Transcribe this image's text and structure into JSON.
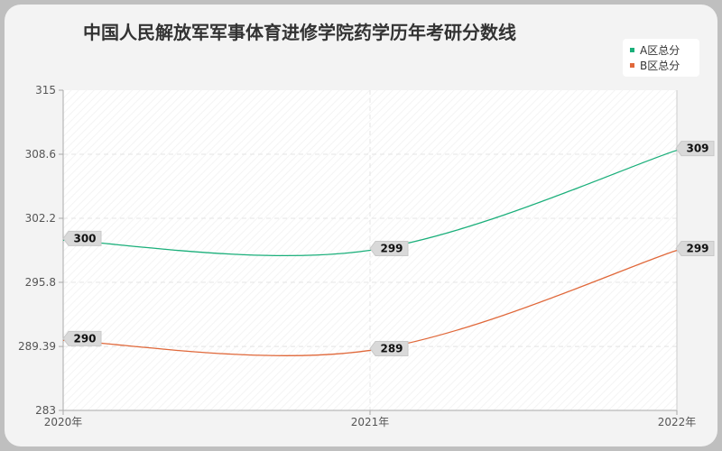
{
  "chart_data": {
    "type": "line",
    "title": "中国人民解放军军事体育进修学院药学历年考研分数线",
    "categories": [
      "2020年",
      "2021年",
      "2022年"
    ],
    "series": [
      {
        "name": "A区总分",
        "values": [
          300,
          299,
          309
        ],
        "color": "#1aaf7a"
      },
      {
        "name": "B区总分",
        "values": [
          290,
          289,
          299
        ],
        "color": "#e0683a"
      }
    ],
    "y_ticks": [
      "315",
      "308.6",
      "302.2",
      "295.8",
      "289.39",
      "283"
    ],
    "ylim": [
      283,
      315
    ],
    "grid": true,
    "legend_position": "top-right"
  }
}
